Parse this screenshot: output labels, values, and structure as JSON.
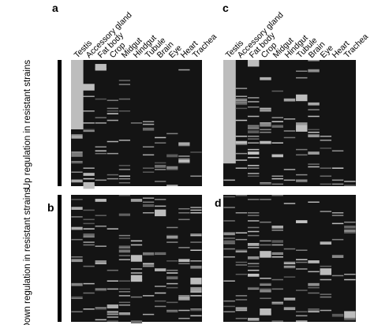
{
  "chart_data": {
    "type": "heatmap",
    "columns": [
      "Testis",
      "Accessory gland",
      "Fat body",
      "Crop",
      "Midgut",
      "Hindgut",
      "Tubule",
      "Brain",
      "Eye",
      "Heart",
      "Trachea"
    ],
    "row_groups": [
      "Up regulation in resistant strains",
      "Down regulation in resistant strains"
    ],
    "colors": {
      "cell_low": "#141414",
      "cell_high": "#bdbdbd",
      "stripe": "#e0e0e0",
      "bar": "#000000"
    },
    "panels": [
      {
        "label": "a",
        "group": "Up regulation in resistant strains",
        "rows": 95,
        "profile": "up",
        "testis_fraction": 0.55,
        "seed": 11
      },
      {
        "label": "c",
        "group": "Up regulation in resistant strains",
        "rows": 95,
        "profile": "up",
        "testis_fraction": 0.82,
        "seed": 23
      },
      {
        "label": "b",
        "group": "Down regulation in resistant strains",
        "rows": 95,
        "profile": "down",
        "testis_fraction": 0.0,
        "seed": 37
      },
      {
        "label": "d",
        "group": "Down regulation in resistant strains",
        "rows": 95,
        "profile": "down",
        "testis_fraction": 0.0,
        "seed": 53
      }
    ]
  }
}
